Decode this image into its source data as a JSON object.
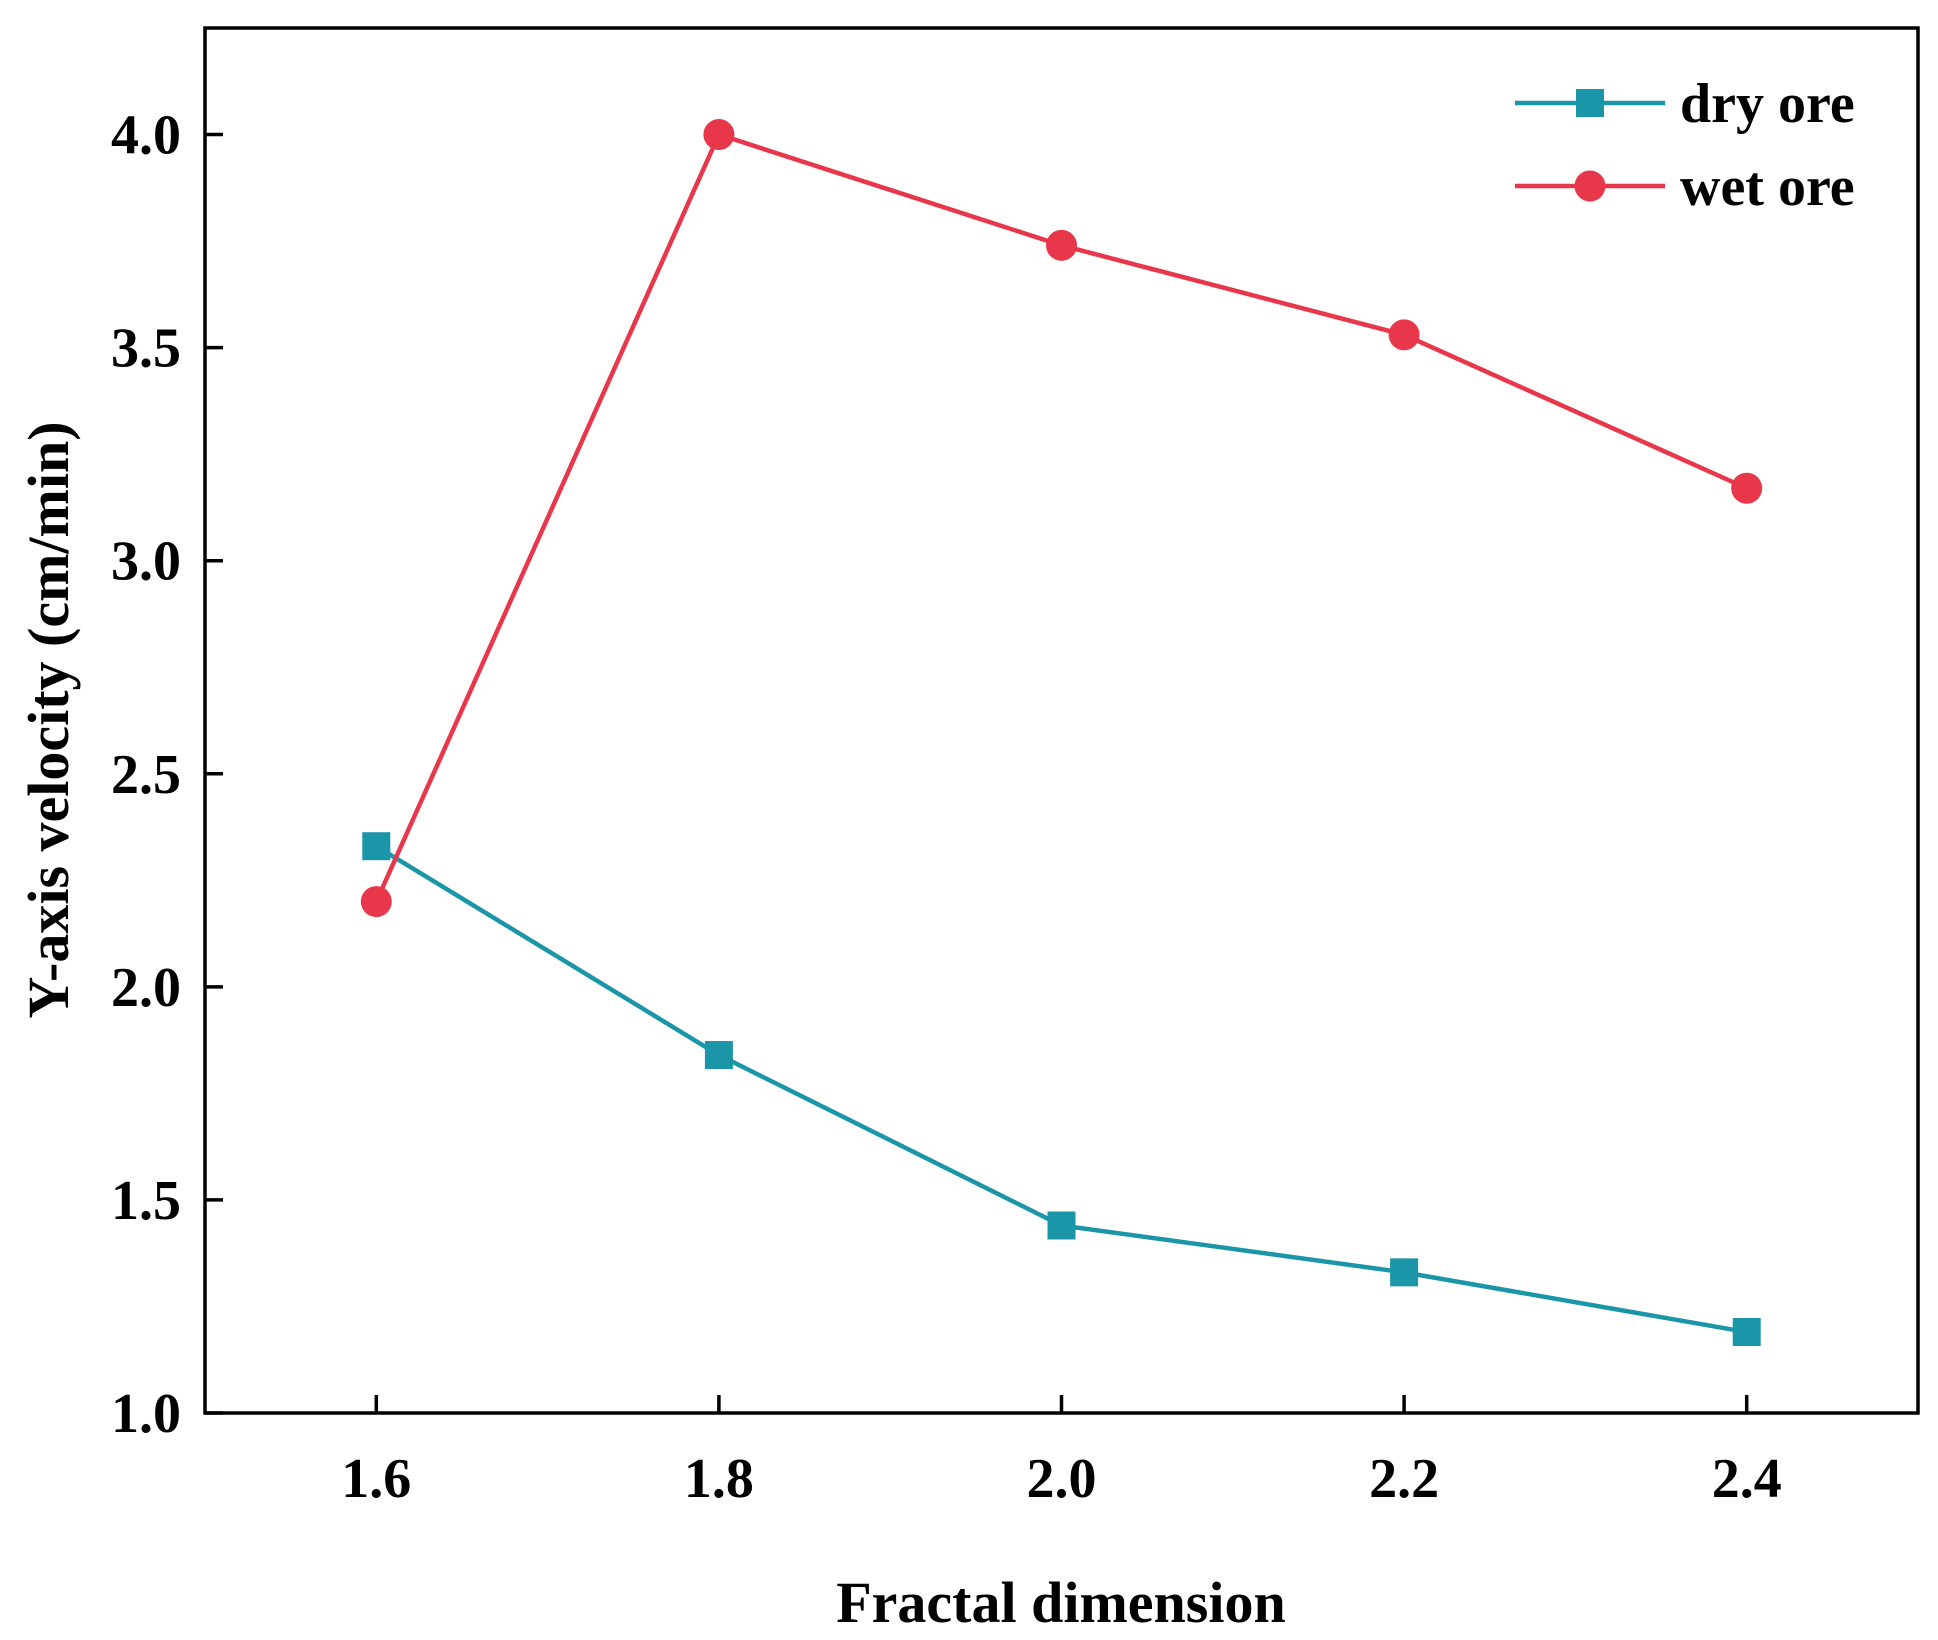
{
  "chart_data": {
    "type": "line",
    "title": "",
    "xlabel": "Fractal dimension",
    "ylabel": "Y-axis velocity (cm/min)",
    "xlim": [
      1.5,
      2.5
    ],
    "ylim": [
      1.0,
      4.25
    ],
    "x": [
      1.6,
      1.8,
      2.0,
      2.2,
      2.4
    ],
    "x_tick_labels": [
      "1.6",
      "1.8",
      "2.0",
      "2.2",
      "2.4"
    ],
    "y_ticks": [
      1.0,
      1.5,
      2.0,
      2.5,
      3.0,
      3.5,
      4.0
    ],
    "y_tick_labels": [
      "1.0",
      "1.5",
      "2.0",
      "2.5",
      "3.0",
      "3.5",
      "4.0"
    ],
    "grid": false,
    "legend_position": "top-right",
    "series": [
      {
        "name": "dry ore",
        "marker": "square",
        "color": "#1a96a8",
        "values": [
          2.33,
          1.84,
          1.44,
          1.33,
          1.19
        ]
      },
      {
        "name": "wet ore",
        "marker": "circle",
        "color": "#e8374a",
        "values": [
          2.2,
          4.0,
          3.74,
          3.53,
          3.17
        ]
      }
    ]
  }
}
